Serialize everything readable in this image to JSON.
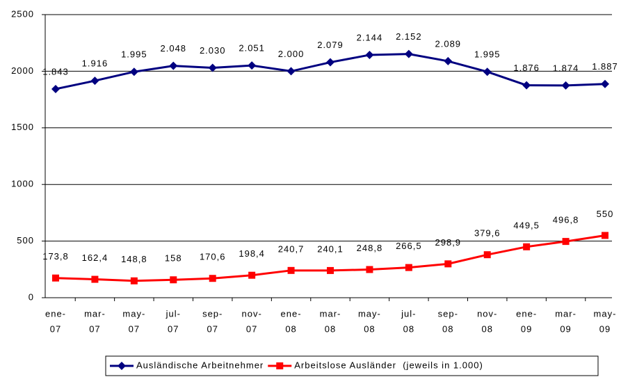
{
  "chart_data": {
    "type": "line",
    "categories": [
      [
        "ene-",
        "07"
      ],
      [
        "mar-",
        "07"
      ],
      [
        "may-",
        "07"
      ],
      [
        "jul-",
        "07"
      ],
      [
        "sep-",
        "07"
      ],
      [
        "nov-",
        "07"
      ],
      [
        "ene-",
        "08"
      ],
      [
        "mar-",
        "08"
      ],
      [
        "may-",
        "08"
      ],
      [
        "jul-",
        "08"
      ],
      [
        "sep-",
        "08"
      ],
      [
        "nov-",
        "08"
      ],
      [
        "ene-",
        "09"
      ],
      [
        "mar-",
        "09"
      ],
      [
        "may-",
        "09"
      ]
    ],
    "series": [
      {
        "name": "Ausländische Arbeitnehmer",
        "color": "#000080",
        "values": [
          1843,
          1916,
          1995,
          2048,
          2030,
          2051,
          2000,
          2079,
          2144,
          2152,
          2089,
          1995,
          1876,
          1874,
          1887
        ],
        "value_labels": [
          "1.843",
          "1.916",
          "1.995",
          "2.048",
          "2.030",
          "2.051",
          "2.000",
          "2.079",
          "2.144",
          "2.152",
          "2.089",
          "1.995",
          "1.876",
          "1.874",
          "1.887"
        ]
      },
      {
        "name": "Arbeitslose Ausländer  (jeweils in 1.000)",
        "color": "#ff0000",
        "values": [
          173.8,
          162.4,
          148.8,
          158,
          170.6,
          198.4,
          240.7,
          240.1,
          248.8,
          266.5,
          298.9,
          379.6,
          449.5,
          496.8,
          550
        ],
        "value_labels": [
          "173,8",
          "162,4",
          "148,8",
          "158",
          "170,6",
          "198,4",
          "240,7",
          "240,1",
          "248,8",
          "266,5",
          "298,9",
          "379,6",
          "449,5",
          "496,8",
          "550"
        ]
      }
    ],
    "ylim": [
      0,
      2500
    ],
    "yticks": [
      0,
      500,
      1000,
      1500,
      2000,
      2500
    ],
    "grid": true,
    "legend": "bottom"
  }
}
